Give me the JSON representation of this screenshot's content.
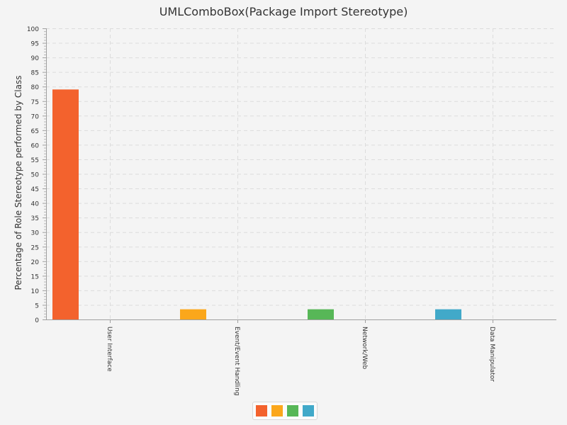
{
  "chart_data": {
    "type": "bar",
    "title": "UMLComboBox(Package Import Stereotype)",
    "xlabel": "",
    "ylabel": "Percentage of Role Stereotype performed by Class",
    "categories": [
      "User Interface",
      "Event/Event Handling",
      "Network/Web",
      "Data Manipulator"
    ],
    "values": [
      79,
      3.5,
      3.5,
      3.5
    ],
    "colors": [
      "#f3622d",
      "#fba71b",
      "#57b757",
      "#41a9c9"
    ],
    "ylim": [
      0,
      100
    ],
    "ytick_step": 5,
    "yticks": [
      "0",
      "5",
      "10",
      "15",
      "20",
      "25",
      "30",
      "35",
      "40",
      "45",
      "50",
      "55",
      "60",
      "65",
      "70",
      "75",
      "80",
      "85",
      "90",
      "95",
      "100"
    ],
    "grid": true,
    "legend": {
      "placement": "bottom-center",
      "entries": [
        "",
        "",
        "",
        ""
      ]
    }
  }
}
